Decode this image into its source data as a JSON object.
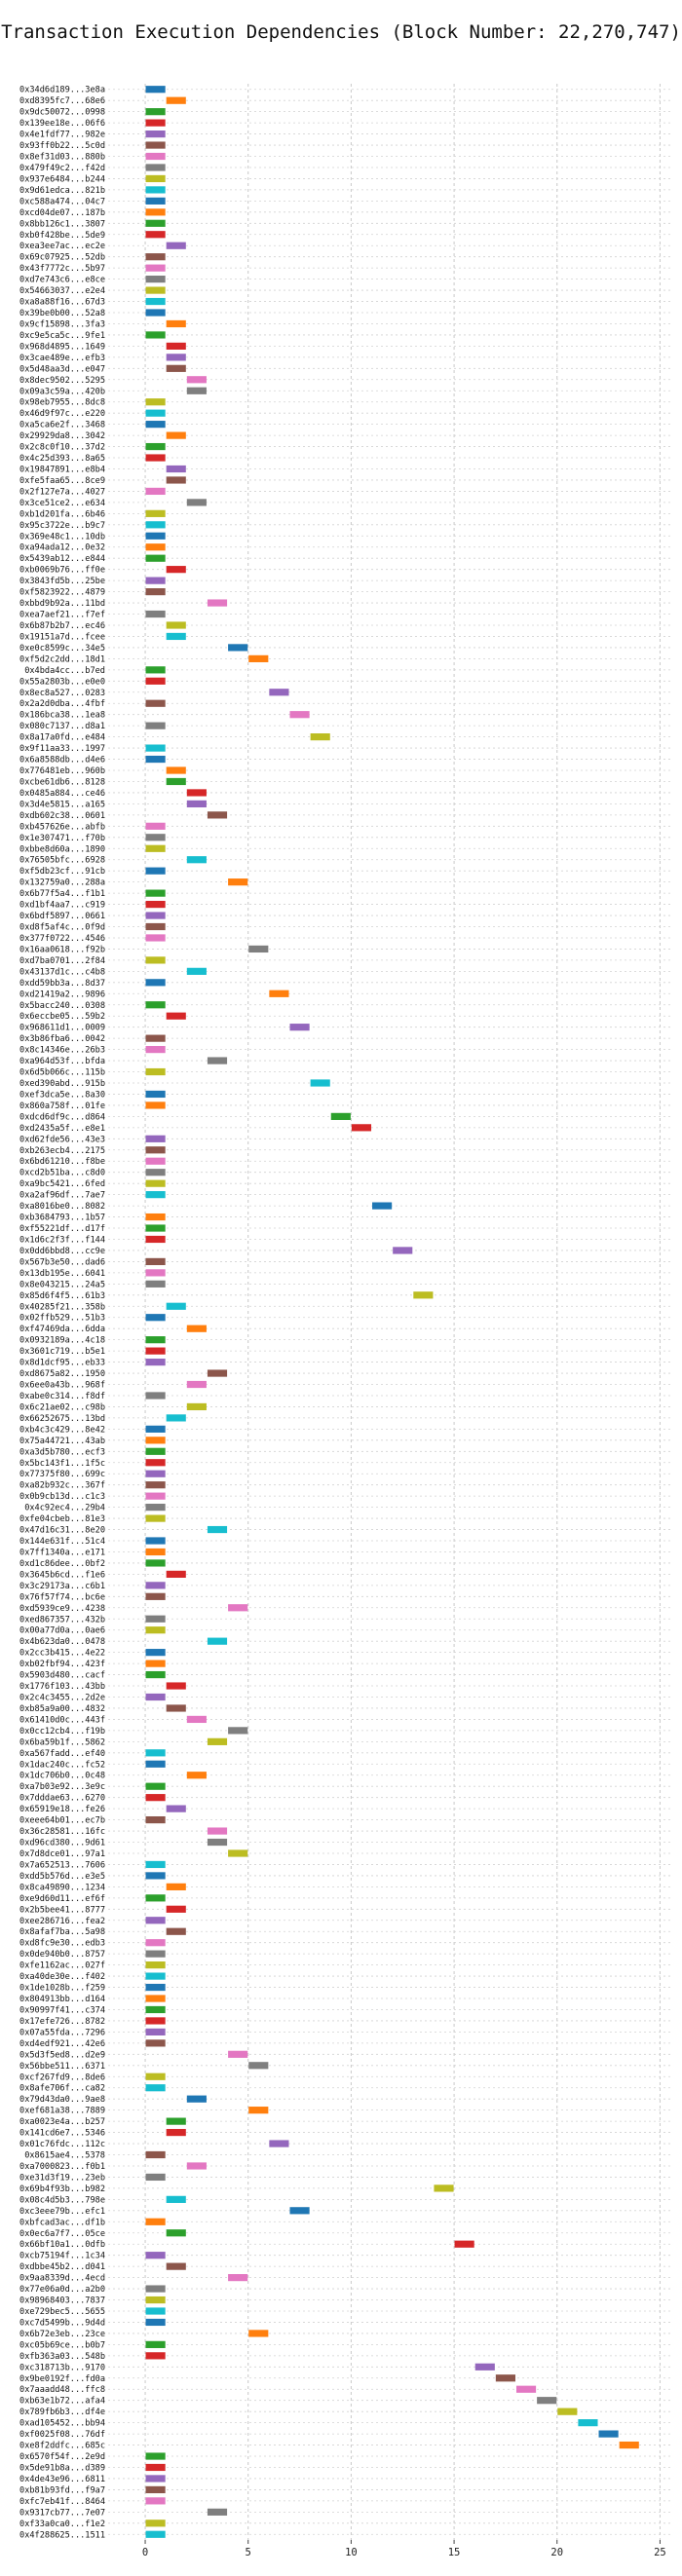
{
  "chart_data": {
    "type": "gantt",
    "title": "Transaction Execution Dependencies (Block Number: 22,270,747)",
    "xlabel": "",
    "ylabel": "",
    "xlim": [
      -1.8,
      25.5
    ],
    "x_ticks": [
      0,
      5,
      10,
      15,
      20,
      25
    ],
    "grid": true,
    "bar_height_units": 1,
    "palette": [
      "#1f77b4",
      "#ff7f0e",
      "#2ca02c",
      "#d62728",
      "#9467bd",
      "#8c564b",
      "#e377c2",
      "#7f7f7f",
      "#bcbd22",
      "#17becf"
    ],
    "transactions": [
      {
        "label": "0x34d6d189...3e8a",
        "start": 0
      },
      {
        "label": "0xd8395fc7...68e6",
        "start": 1
      },
      {
        "label": "0x9dc50072...0998",
        "start": 0
      },
      {
        "label": "0x139ee18e...06f6",
        "start": 0
      },
      {
        "label": "0x4e1fdf77...982e",
        "start": 0
      },
      {
        "label": "0x93ff0b22...5c0d",
        "start": 0
      },
      {
        "label": "0x8ef31d03...880b",
        "start": 0
      },
      {
        "label": "0x479f49c2...f42d",
        "start": 0
      },
      {
        "label": "0x937e6484...b244",
        "start": 0
      },
      {
        "label": "0x9d61edca...821b",
        "start": 0
      },
      {
        "label": "0xc588a474...04c7",
        "start": 0
      },
      {
        "label": "0xcd04de07...187b",
        "start": 0
      },
      {
        "label": "0x8bb126c1...3807",
        "start": 0
      },
      {
        "label": "0xb0f428be...5de9",
        "start": 0
      },
      {
        "label": "0xea3ee7ac...ec2e",
        "start": 1
      },
      {
        "label": "0x69c07925...52db",
        "start": 0
      },
      {
        "label": "0x43f7772c...5b97",
        "start": 0
      },
      {
        "label": "0xd7e743c6...e8ce",
        "start": 0
      },
      {
        "label": "0x54663037...e2e4",
        "start": 0
      },
      {
        "label": "0xa8a88f16...67d3",
        "start": 0
      },
      {
        "label": "0x39be0b00...52a8",
        "start": 0
      },
      {
        "label": "0x9cf15898...3fa3",
        "start": 1
      },
      {
        "label": "0xc9e5ca5c...9fe1",
        "start": 0
      },
      {
        "label": "0x968d4895...1649",
        "start": 1
      },
      {
        "label": "0x3cae489e...efb3",
        "start": 1
      },
      {
        "label": "0x5d48aa3d...e047",
        "start": 1
      },
      {
        "label": "0x8dec9502...5295",
        "start": 2
      },
      {
        "label": "0x09a3c59a...420b",
        "start": 2
      },
      {
        "label": "0x98eb7955...8dc8",
        "start": 0
      },
      {
        "label": "0x46d9f97c...e220",
        "start": 0
      },
      {
        "label": "0xa5ca6e2f...3468",
        "start": 0
      },
      {
        "label": "0x29929da8...3042",
        "start": 1
      },
      {
        "label": "0x2c8c0f10...37d2",
        "start": 0
      },
      {
        "label": "0x4c25d393...8a65",
        "start": 0
      },
      {
        "label": "0x19847891...e8b4",
        "start": 1
      },
      {
        "label": "0xfe5faa65...8ce9",
        "start": 1
      },
      {
        "label": "0x2f127e7a...4027",
        "start": 0
      },
      {
        "label": "0x3ce51ce2...e634",
        "start": 2
      },
      {
        "label": "0xb1d201fa...6b46",
        "start": 0
      },
      {
        "label": "0x95c3722e...b9c7",
        "start": 0
      },
      {
        "label": "0x369e48c1...10db",
        "start": 0
      },
      {
        "label": "0xa94ada12...0e32",
        "start": 0
      },
      {
        "label": "0x5439ab12...e844",
        "start": 0
      },
      {
        "label": "0xb0069b76...ff0e",
        "start": 1
      },
      {
        "label": "0x3843fd5b...25be",
        "start": 0
      },
      {
        "label": "0xf5823922...4879",
        "start": 0
      },
      {
        "label": "0xbbd9b92a...11bd",
        "start": 3
      },
      {
        "label": "0xea7aef21...f7ef",
        "start": 0
      },
      {
        "label": "0x6b87b2b7...ec46",
        "start": 1
      },
      {
        "label": "0x19151a7d...fcee",
        "start": 1
      },
      {
        "label": "0xe0c8599c...34e5",
        "start": 4
      },
      {
        "label": "0xf5d2c2dd...18d1",
        "start": 5
      },
      {
        "label": "0x4bda4cc...b7ed",
        "start": 0
      },
      {
        "label": "0x55a2803b...e0e0",
        "start": 0
      },
      {
        "label": "0x8ec8a527...0283",
        "start": 6
      },
      {
        "label": "0x2a2d0dba...4fbf",
        "start": 0
      },
      {
        "label": "0x186bca38...1ea8",
        "start": 7
      },
      {
        "label": "0x080c7137...d8a1",
        "start": 0
      },
      {
        "label": "0x8a17a0fd...e484",
        "start": 8
      },
      {
        "label": "0x9f11aa33...1997",
        "start": 0
      },
      {
        "label": "0x6a8588db...d4e6",
        "start": 0
      },
      {
        "label": "0x776481eb...960b",
        "start": 1
      },
      {
        "label": "0xcbe61db6...8128",
        "start": 1
      },
      {
        "label": "0x0485a884...ce46",
        "start": 2
      },
      {
        "label": "0x3d4e5815...a165",
        "start": 2
      },
      {
        "label": "0xdb602c38...0601",
        "start": 3
      },
      {
        "label": "0xb457626e...abfb",
        "start": 0
      },
      {
        "label": "0x1e307471...f70b",
        "start": 0
      },
      {
        "label": "0xbbe8d60a...1890",
        "start": 0
      },
      {
        "label": "0x76505bfc...6928",
        "start": 2
      },
      {
        "label": "0xf5db23cf...91cb",
        "start": 0
      },
      {
        "label": "0x132759a0...288a",
        "start": 4
      },
      {
        "label": "0x6b77f5a4...f1b1",
        "start": 0
      },
      {
        "label": "0xd1bf4aa7...c919",
        "start": 0
      },
      {
        "label": "0x6bdf5897...0661",
        "start": 0
      },
      {
        "label": "0xd8f5af4c...0f9d",
        "start": 0
      },
      {
        "label": "0x377f0722...4546",
        "start": 0
      },
      {
        "label": "0x16aa0618...f92b",
        "start": 5
      },
      {
        "label": "0xd7ba0701...2f84",
        "start": 0
      },
      {
        "label": "0x43137d1c...c4b8",
        "start": 2
      },
      {
        "label": "0xdd59bb3a...8d37",
        "start": 0
      },
      {
        "label": "0xd21419a2...9896",
        "start": 6
      },
      {
        "label": "0x5bacc240...0308",
        "start": 0
      },
      {
        "label": "0x6eccbe05...59b2",
        "start": 1
      },
      {
        "label": "0x968611d1...0009",
        "start": 7
      },
      {
        "label": "0x3b86fba6...0042",
        "start": 0
      },
      {
        "label": "0x8c14346e...26b3",
        "start": 0
      },
      {
        "label": "0xa964d53f...bfda",
        "start": 3
      },
      {
        "label": "0x6d5b066c...115b",
        "start": 0
      },
      {
        "label": "0xed390abd...915b",
        "start": 8
      },
      {
        "label": "0xef3dca5e...8a30",
        "start": 0
      },
      {
        "label": "0x860a758f...01fe",
        "start": 0
      },
      {
        "label": "0xdcd6df9c...d864",
        "start": 9
      },
      {
        "label": "0xd2435a5f...e8e1",
        "start": 10
      },
      {
        "label": "0xd62fde56...43e3",
        "start": 0
      },
      {
        "label": "0xb263ecb4...2175",
        "start": 0
      },
      {
        "label": "0x6bd61210...f8be",
        "start": 0
      },
      {
        "label": "0xcd2b51ba...c8d0",
        "start": 0
      },
      {
        "label": "0xa9bc5421...6fed",
        "start": 0
      },
      {
        "label": "0xa2af96df...7ae7",
        "start": 0
      },
      {
        "label": "0xa8016be0...8082",
        "start": 11
      },
      {
        "label": "0xb3684793...1b57",
        "start": 0
      },
      {
        "label": "0xf55221df...d17f",
        "start": 0
      },
      {
        "label": "0x1d6c2f3f...f144",
        "start": 0
      },
      {
        "label": "0x0dd6bbd8...cc9e",
        "start": 12
      },
      {
        "label": "0x567b3e50...dad6",
        "start": 0
      },
      {
        "label": "0x13db195e...6041",
        "start": 0
      },
      {
        "label": "0x8e043215...24a5",
        "start": 0
      },
      {
        "label": "0x85d6f4f5...61b3",
        "start": 13
      },
      {
        "label": "0x40285f21...358b",
        "start": 1
      },
      {
        "label": "0x02ffb529...51b3",
        "start": 0
      },
      {
        "label": "0xf47469da...6dda",
        "start": 2
      },
      {
        "label": "0x0932189a...4c18",
        "start": 0
      },
      {
        "label": "0x3601c719...b5e1",
        "start": 0
      },
      {
        "label": "0x8d1dcf95...eb33",
        "start": 0
      },
      {
        "label": "0xd8675a82...1950",
        "start": 3
      },
      {
        "label": "0x6ee0a43b...968f",
        "start": 2
      },
      {
        "label": "0xabe0c314...f8df",
        "start": 0
      },
      {
        "label": "0x6c21ae02...c98b",
        "start": 2
      },
      {
        "label": "0x66252675...13bd",
        "start": 1
      },
      {
        "label": "0xb4c3c429...8e42",
        "start": 0
      },
      {
        "label": "0x75a44721...43ab",
        "start": 0
      },
      {
        "label": "0xa3d5b780...ecf3",
        "start": 0
      },
      {
        "label": "0x5bc143f1...1f5c",
        "start": 0
      },
      {
        "label": "0x77375f80...699c",
        "start": 0
      },
      {
        "label": "0xa82b932c...367f",
        "start": 0
      },
      {
        "label": "0x0b9cb13d...c1c3",
        "start": 0
      },
      {
        "label": "0x4c92ec4...29b4",
        "start": 0
      },
      {
        "label": "0xfe04cbeb...81e3",
        "start": 0
      },
      {
        "label": "0x47d16c31...8e20",
        "start": 3
      },
      {
        "label": "0x144e631f...51c4",
        "start": 0
      },
      {
        "label": "0x7ff1340a...e171",
        "start": 0
      },
      {
        "label": "0xd1c86dee...0bf2",
        "start": 0
      },
      {
        "label": "0x3645b6cd...f1e6",
        "start": 1
      },
      {
        "label": "0x3c29173a...c6b1",
        "start": 0
      },
      {
        "label": "0x76f57f74...bc6e",
        "start": 0
      },
      {
        "label": "0xd5939ce9...4238",
        "start": 4
      },
      {
        "label": "0xed867357...432b",
        "start": 0
      },
      {
        "label": "0x00a77d0a...0ae6",
        "start": 0
      },
      {
        "label": "0x4b623da0...0478",
        "start": 3
      },
      {
        "label": "0x2cc3b415...4e22",
        "start": 0
      },
      {
        "label": "0xb02fbf94...423f",
        "start": 0
      },
      {
        "label": "0x5903d480...cacf",
        "start": 0
      },
      {
        "label": "0x1776f103...43bb",
        "start": 1
      },
      {
        "label": "0x2c4c3455...2d2e",
        "start": 0
      },
      {
        "label": "0xb85a9a00...4832",
        "start": 1
      },
      {
        "label": "0x61410d0c...443f",
        "start": 2
      },
      {
        "label": "0x0cc12cb4...f19b",
        "start": 4
      },
      {
        "label": "0x6ba59b1f...5862",
        "start": 3
      },
      {
        "label": "0xa567fadd...ef40",
        "start": 0
      },
      {
        "label": "0x1dac240c...fc52",
        "start": 0
      },
      {
        "label": "0x1dc706b0...0c48",
        "start": 2
      },
      {
        "label": "0xa7b03e92...3e9c",
        "start": 0
      },
      {
        "label": "0x7dddae63...6270",
        "start": 0
      },
      {
        "label": "0x65919e18...fe26",
        "start": 1
      },
      {
        "label": "0xeee64b01...ec7b",
        "start": 0
      },
      {
        "label": "0x36c28581...16fc",
        "start": 3
      },
      {
        "label": "0xd96cd380...9d61",
        "start": 3
      },
      {
        "label": "0x7d8dce01...97a1",
        "start": 4
      },
      {
        "label": "0x7a652513...7606",
        "start": 0
      },
      {
        "label": "0xdd5b576d...e3e5",
        "start": 0
      },
      {
        "label": "0x8ca49890...1234",
        "start": 1
      },
      {
        "label": "0xe9d60d11...ef6f",
        "start": 0
      },
      {
        "label": "0x2b5bee41...8777",
        "start": 1
      },
      {
        "label": "0xee286716...fea2",
        "start": 0
      },
      {
        "label": "0x8afaf7ba...5a98",
        "start": 1
      },
      {
        "label": "0xd8fc9e30...edb3",
        "start": 0
      },
      {
        "label": "0x0de940b0...8757",
        "start": 0
      },
      {
        "label": "0xfe1162ac...027f",
        "start": 0
      },
      {
        "label": "0xa40de30e...f402",
        "start": 0
      },
      {
        "label": "0x1de1028b...f259",
        "start": 0
      },
      {
        "label": "0x804913bb...d164",
        "start": 0
      },
      {
        "label": "0x90997f41...c374",
        "start": 0
      },
      {
        "label": "0x17efe726...8782",
        "start": 0
      },
      {
        "label": "0x07a55fda...7296",
        "start": 0
      },
      {
        "label": "0xd4edf921...42e6",
        "start": 0
      },
      {
        "label": "0x5d3f5ed8...d2e9",
        "start": 4
      },
      {
        "label": "0x56bbe511...6371",
        "start": 5
      },
      {
        "label": "0xcf267fd9...8de6",
        "start": 0
      },
      {
        "label": "0x8afe706f...ca82",
        "start": 0
      },
      {
        "label": "0x79d43da0...9ae8",
        "start": 2
      },
      {
        "label": "0xef681a38...7889",
        "start": 5
      },
      {
        "label": "0xa0023e4a...b257",
        "start": 1
      },
      {
        "label": "0x141cd6e7...5346",
        "start": 1
      },
      {
        "label": "0x01c76fdc...112c",
        "start": 6
      },
      {
        "label": "0x8615ae4...5378",
        "start": 0
      },
      {
        "label": "0xa7000823...f0b1",
        "start": 2
      },
      {
        "label": "0xe31d3f19...23eb",
        "start": 0
      },
      {
        "label": "0x69b4f93b...b982",
        "start": 14
      },
      {
        "label": "0x08c4d5b3...798e",
        "start": 1
      },
      {
        "label": "0xc3eee79b...efc1",
        "start": 7
      },
      {
        "label": "0xbfcad3ac...df1b",
        "start": 0
      },
      {
        "label": "0x0ec6a7f7...05ce",
        "start": 1
      },
      {
        "label": "0x66bf10a1...0dfb",
        "start": 15
      },
      {
        "label": "0xcb75194f...1c34",
        "start": 0
      },
      {
        "label": "0xdbbe45b2...d041",
        "start": 1
      },
      {
        "label": "0x9aa8339d...4ecd",
        "start": 4
      },
      {
        "label": "0x77e06a0d...a2b0",
        "start": 0
      },
      {
        "label": "0x98968403...7837",
        "start": 0
      },
      {
        "label": "0xe729bec5...5655",
        "start": 0
      },
      {
        "label": "0xc7d5499b...9d4d",
        "start": 0
      },
      {
        "label": "0x6b72e3eb...23ce",
        "start": 5
      },
      {
        "label": "0xc05b69ce...b0b7",
        "start": 0
      },
      {
        "label": "0xfb363a03...548b",
        "start": 0
      },
      {
        "label": "0xc318713b...9170",
        "start": 16
      },
      {
        "label": "0x9be0192f...fd0a",
        "start": 17
      },
      {
        "label": "0x7aaadd48...ffc8",
        "start": 18
      },
      {
        "label": "0xb63e1b72...afa4",
        "start": 19
      },
      {
        "label": "0x789fb6b3...df4e",
        "start": 20
      },
      {
        "label": "0xad105452...bb94",
        "start": 21
      },
      {
        "label": "0xf0025f08...76df",
        "start": 22
      },
      {
        "label": "0xe8f2ddfc...685c",
        "start": 23
      },
      {
        "label": "0x6570f54f...2e9d",
        "start": 0
      },
      {
        "label": "0x5de91b8a...d389",
        "start": 0
      },
      {
        "label": "0x4de43e96...6811",
        "start": 0
      },
      {
        "label": "0xb81b93fd...f9a7",
        "start": 0
      },
      {
        "label": "0xfc7eb41f...8464",
        "start": 0
      },
      {
        "label": "0x9317cb77...7e07",
        "start": 3
      },
      {
        "label": "0xf33a0ca0...f1e2",
        "start": 0
      },
      {
        "label": "0x4f288625...1511",
        "start": 0
      }
    ]
  }
}
